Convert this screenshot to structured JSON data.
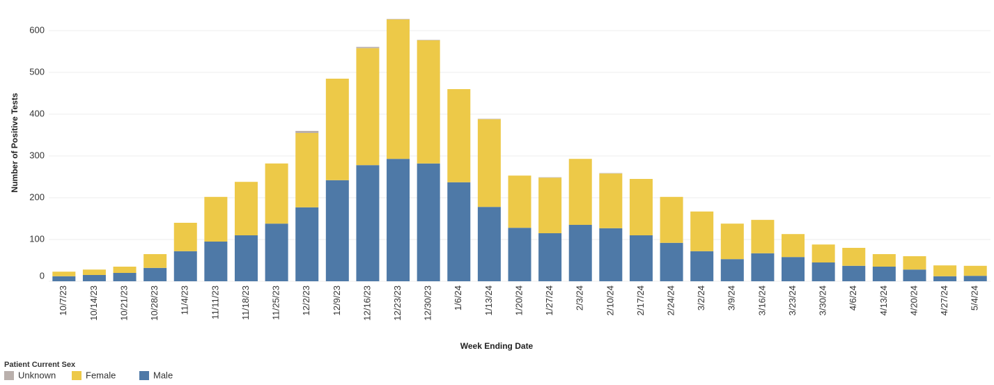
{
  "chart_data": {
    "type": "stacked_bar",
    "x_label": "Week Ending Date",
    "y_label": "Number of Positive Tests",
    "legend_title": "Patient Current Sex",
    "categories": [
      "10/7/23",
      "10/14/23",
      "10/21/23",
      "10/28/23",
      "11/4/23",
      "11/11/23",
      "11/18/23",
      "11/25/23",
      "12/2/23",
      "12/9/23",
      "12/16/23",
      "12/23/23",
      "12/30/23",
      "1/6/24",
      "1/13/24",
      "1/20/24",
      "1/27/24",
      "2/3/24",
      "2/10/24",
      "2/17/24",
      "2/24/24",
      "3/2/24",
      "3/9/24",
      "3/16/24",
      "3/23/24",
      "3/30/24",
      "4/6/24",
      "4/13/24",
      "4/20/24",
      "4/27/24",
      "5/4/24"
    ],
    "series": [
      {
        "name": "Unknown",
        "color": "#bab0ac",
        "values": [
          0,
          0,
          0,
          0,
          0,
          0,
          0,
          0,
          5,
          0,
          3,
          1,
          1,
          0,
          1,
          0,
          1,
          0,
          1,
          0,
          0,
          0,
          0,
          0,
          0,
          0,
          0,
          0,
          0,
          0,
          0
        ]
      },
      {
        "name": "Female",
        "color": "#edc948",
        "values": [
          11,
          13,
          15,
          33,
          68,
          107,
          128,
          144,
          178,
          243,
          280,
          334,
          295,
          223,
          210,
          125,
          133,
          158,
          131,
          135,
          110,
          95,
          85,
          80,
          55,
          43,
          43,
          30,
          32,
          26,
          24
        ]
      },
      {
        "name": "Male",
        "color": "#4e79a7",
        "values": [
          12,
          15,
          20,
          32,
          72,
          95,
          110,
          138,
          177,
          242,
          278,
          293,
          282,
          237,
          178,
          128,
          115,
          135,
          127,
          110,
          92,
          72,
          53,
          67,
          58,
          45,
          37,
          35,
          28,
          12,
          13
        ]
      }
    ],
    "ylim": [
      0,
      650
    ],
    "yticks": [
      0,
      100,
      200,
      300,
      400,
      500,
      600
    ],
    "grid": true
  }
}
